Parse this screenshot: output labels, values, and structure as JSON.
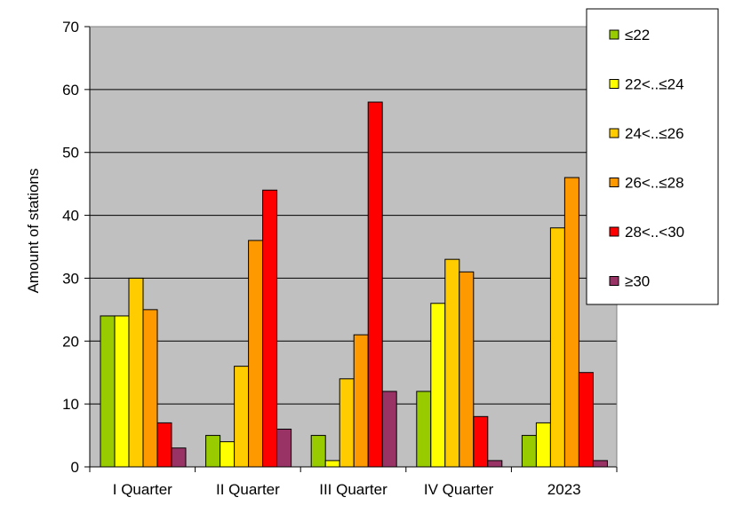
{
  "chart_data": {
    "type": "bar",
    "title": "",
    "xlabel": "",
    "ylabel": "Amount  of stations",
    "ylim": [
      0,
      70
    ],
    "yticks": [
      0,
      10,
      20,
      30,
      40,
      50,
      60,
      70
    ],
    "grid": true,
    "plot_background": "#c0c0c0",
    "legend_position": "right",
    "categories": [
      "I Quarter",
      "II Quarter",
      "III Quarter",
      "IV Quarter",
      "2023"
    ],
    "series": [
      {
        "name": "≤22",
        "color": "#99cc00",
        "values": [
          24,
          5,
          5,
          12,
          5
        ]
      },
      {
        "name": "22<..≤24",
        "color": "#ffff00",
        "values": [
          24,
          4,
          1,
          26,
          7
        ]
      },
      {
        "name": "24<..≤26",
        "color": "#ffcc00",
        "values": [
          30,
          16,
          14,
          33,
          38
        ]
      },
      {
        "name": "26<..≤28",
        "color": "#ff9900",
        "values": [
          25,
          36,
          21,
          31,
          46
        ]
      },
      {
        "name": "28<..<30",
        "color": "#ff0000",
        "values": [
          7,
          44,
          58,
          8,
          15
        ]
      },
      {
        "name": "≥30",
        "color": "#993366",
        "values": [
          3,
          6,
          12,
          1,
          1
        ]
      }
    ]
  }
}
